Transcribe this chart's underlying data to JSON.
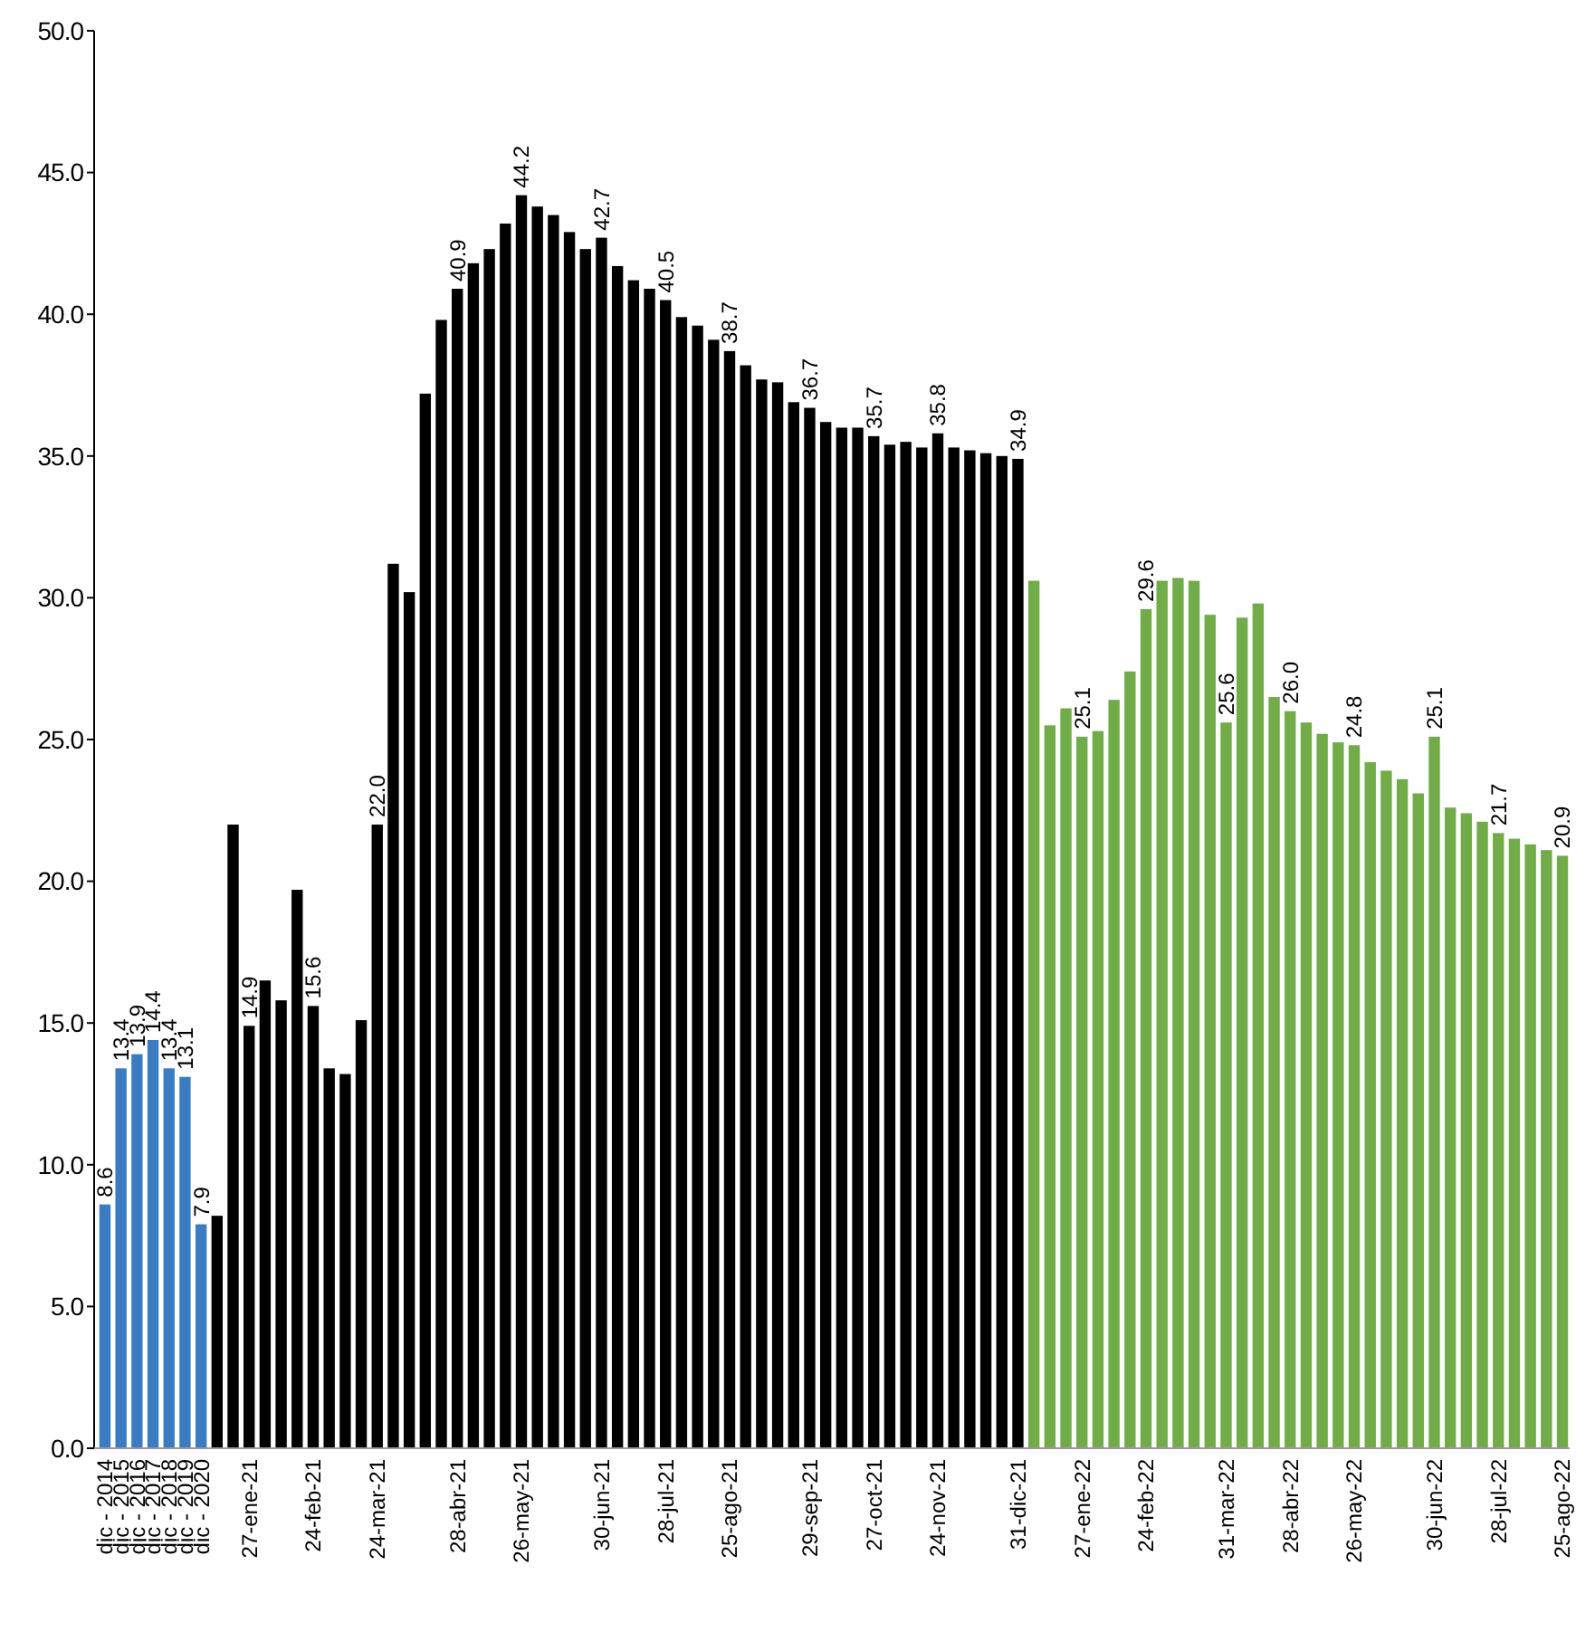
{
  "chart_data": {
    "type": "bar",
    "categories": [
      "dic - 2014",
      "dic - 2015",
      "dic - 2016",
      "dic - 2017",
      "dic - 2018",
      "dic - 2019",
      "dic - 2020",
      null,
      null,
      "27-ene-21",
      null,
      null,
      null,
      "24-feb-21",
      null,
      null,
      null,
      "24-mar-21",
      null,
      null,
      null,
      null,
      "28-abr-21",
      null,
      null,
      null,
      "26-may-21",
      null,
      null,
      null,
      null,
      "30-jun-21",
      null,
      null,
      null,
      "28-jul-21",
      null,
      null,
      null,
      "25-ago-21",
      null,
      null,
      null,
      null,
      "29-sep-21",
      null,
      null,
      null,
      "27-oct-21",
      null,
      null,
      null,
      "24-nov-21",
      null,
      null,
      null,
      null,
      "31-dic-21",
      null,
      null,
      null,
      "27-ene-22",
      null,
      null,
      null,
      "24-feb-22",
      null,
      null,
      null,
      null,
      "31-mar-22",
      null,
      null,
      null,
      "28-abr-22",
      null,
      null,
      null,
      "26-may-22",
      null,
      null,
      null,
      null,
      "30-jun-22",
      null,
      null,
      null,
      "28-jul-22",
      null,
      null,
      null,
      "25-ago-22"
    ],
    "values": [
      8.6,
      13.4,
      13.9,
      14.4,
      13.4,
      13.1,
      7.9,
      8.2,
      22.0,
      14.9,
      16.5,
      15.8,
      19.7,
      15.6,
      13.4,
      13.2,
      15.1,
      22.0,
      31.2,
      30.2,
      37.2,
      39.8,
      40.9,
      41.8,
      42.3,
      43.2,
      44.2,
      43.8,
      43.5,
      42.9,
      42.3,
      42.7,
      41.7,
      41.2,
      40.9,
      40.5,
      39.9,
      39.6,
      39.1,
      38.7,
      38.2,
      37.7,
      37.6,
      36.9,
      36.7,
      36.2,
      36.0,
      36.0,
      35.7,
      35.4,
      35.5,
      35.3,
      35.8,
      35.3,
      35.2,
      35.1,
      35.0,
      34.9,
      30.6,
      25.5,
      26.1,
      25.1,
      25.3,
      26.4,
      27.4,
      29.6,
      30.6,
      30.7,
      30.6,
      29.4,
      25.6,
      29.3,
      29.8,
      26.5,
      26.0,
      25.6,
      25.2,
      24.9,
      24.8,
      24.2,
      23.9,
      23.6,
      23.1,
      25.1,
      22.6,
      22.4,
      22.1,
      21.7,
      21.5,
      21.3,
      21.1,
      20.9
    ],
    "value_labels": [
      "8.6",
      "13.4",
      "13.9",
      "14.4",
      "13.4",
      "13.1",
      "7.9",
      null,
      null,
      "14.9",
      null,
      null,
      null,
      "15.6",
      null,
      null,
      null,
      "22.0",
      null,
      null,
      null,
      null,
      "40.9",
      null,
      null,
      null,
      "44.2",
      null,
      null,
      null,
      null,
      "42.7",
      null,
      null,
      null,
      "40.5",
      null,
      null,
      null,
      "38.7",
      null,
      null,
      null,
      null,
      "36.7",
      null,
      null,
      null,
      "35.7",
      null,
      null,
      null,
      "35.8",
      null,
      null,
      null,
      null,
      "34.9",
      null,
      null,
      null,
      "25.1",
      null,
      null,
      null,
      "29.6",
      null,
      null,
      null,
      null,
      "25.6",
      null,
      null,
      null,
      "26.0",
      null,
      null,
      null,
      "24.8",
      null,
      null,
      null,
      null,
      "25.1",
      null,
      null,
      null,
      "21.7",
      null,
      null,
      null,
      "20.9"
    ],
    "colors": [
      "#3a7cc4",
      "#3a7cc4",
      "#3a7cc4",
      "#3a7cc4",
      "#3a7cc4",
      "#3a7cc4",
      "#3a7cc4",
      "#000000",
      "#000000",
      "#000000",
      "#000000",
      "#000000",
      "#000000",
      "#000000",
      "#000000",
      "#000000",
      "#000000",
      "#000000",
      "#000000",
      "#000000",
      "#000000",
      "#000000",
      "#000000",
      "#000000",
      "#000000",
      "#000000",
      "#000000",
      "#000000",
      "#000000",
      "#000000",
      "#000000",
      "#000000",
      "#000000",
      "#000000",
      "#000000",
      "#000000",
      "#000000",
      "#000000",
      "#000000",
      "#000000",
      "#000000",
      "#000000",
      "#000000",
      "#000000",
      "#000000",
      "#000000",
      "#000000",
      "#000000",
      "#000000",
      "#000000",
      "#000000",
      "#000000",
      "#000000",
      "#000000",
      "#000000",
      "#000000",
      "#000000",
      "#000000",
      "#70ad47",
      "#70ad47",
      "#70ad47",
      "#70ad47",
      "#70ad47",
      "#70ad47",
      "#70ad47",
      "#70ad47",
      "#70ad47",
      "#70ad47",
      "#70ad47",
      "#70ad47",
      "#70ad47",
      "#70ad47",
      "#70ad47",
      "#70ad47",
      "#70ad47",
      "#70ad47",
      "#70ad47",
      "#70ad47",
      "#70ad47",
      "#70ad47",
      "#70ad47",
      "#70ad47",
      "#70ad47",
      "#70ad47",
      "#70ad47",
      "#70ad47",
      "#70ad47",
      "#70ad47",
      "#70ad47",
      "#70ad47",
      "#70ad47",
      "#70ad47"
    ],
    "ylim": [
      0,
      50
    ],
    "yticks": [
      {
        "value": 0,
        "label": "0.0"
      },
      {
        "value": 5,
        "label": "5.0"
      },
      {
        "value": 10,
        "label": "10.0"
      },
      {
        "value": 15,
        "label": "15.0"
      },
      {
        "value": 20,
        "label": "20.0"
      },
      {
        "value": 25,
        "label": "25.0"
      },
      {
        "value": 30,
        "label": "30.0"
      },
      {
        "value": 35,
        "label": "35.0"
      },
      {
        "value": 40,
        "label": "40.0"
      },
      {
        "value": 45,
        "label": "45.0"
      },
      {
        "value": 50,
        "label": "50.0"
      }
    ]
  }
}
